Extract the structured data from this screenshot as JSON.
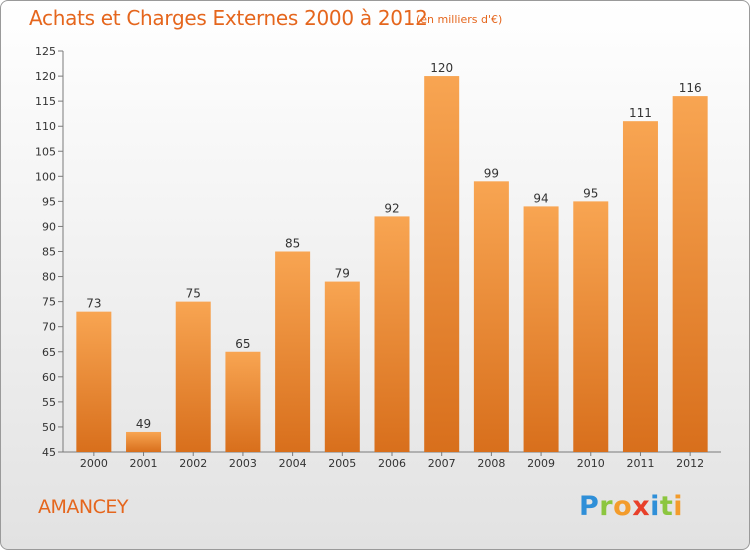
{
  "title": "Achats et Charges Externes 2000 à 2012",
  "subtitle": "(en milliers d'€)",
  "commune": "AMANCEY",
  "logo": {
    "letters": [
      {
        "char": "P",
        "color": "#2f8fd8"
      },
      {
        "char": "r",
        "color": "#8cc63f"
      },
      {
        "char": "o",
        "color": "#f39c2c"
      },
      {
        "char": "x",
        "color": "#e8402a"
      },
      {
        "char": "i",
        "color": "#2f8fd8"
      },
      {
        "char": "t",
        "color": "#8cc63f"
      },
      {
        "char": "i",
        "color": "#f39c2c"
      }
    ]
  },
  "colors": {
    "bar_light": "#f8a552",
    "bar_dark": "#d86f1c",
    "accent": "#e5661d",
    "axis": "#7a7a7a"
  },
  "chart_data": {
    "type": "bar",
    "categories": [
      "2000",
      "2001",
      "2002",
      "2003",
      "2004",
      "2005",
      "2006",
      "2007",
      "2008",
      "2009",
      "2010",
      "2011",
      "2012"
    ],
    "values": [
      73,
      49,
      75,
      65,
      85,
      79,
      92,
      120,
      99,
      94,
      95,
      111,
      116
    ],
    "data_labels": [
      "73",
      "49",
      "75",
      "65",
      "85",
      "79",
      "92",
      "120",
      "99",
      "94",
      "95",
      "111",
      "116"
    ],
    "ylim": [
      45,
      125
    ],
    "yticks": [
      45,
      50,
      55,
      60,
      65,
      70,
      75,
      80,
      85,
      90,
      95,
      100,
      105,
      110,
      115,
      120,
      125
    ],
    "grid": false,
    "xlabel": "",
    "ylabel": ""
  }
}
